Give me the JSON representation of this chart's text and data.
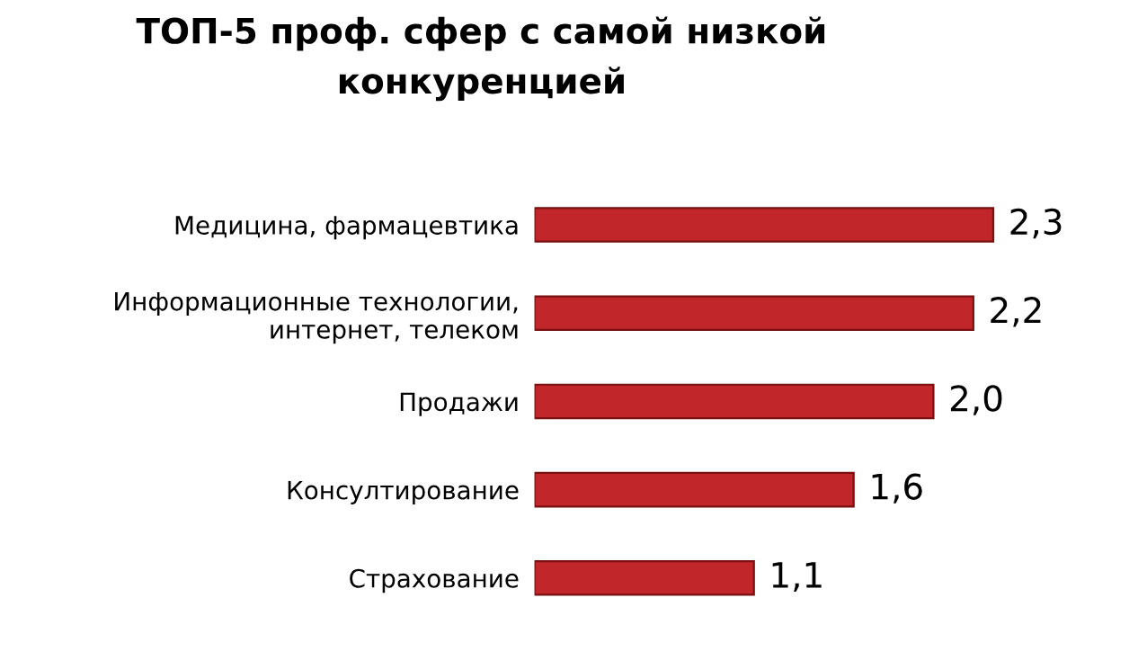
{
  "chart_data": {
    "type": "bar",
    "orientation": "horizontal",
    "title": "ТОП-5 проф. сфер с самой низкой\nконкуренцией",
    "categories": [
      "Медицина, фармацевтика",
      "Информационные технологии,\nинтернет, телеком",
      "Продажи",
      "Консултирование",
      "Страхование"
    ],
    "values": [
      2.3,
      2.2,
      2.0,
      1.6,
      1.1
    ],
    "value_labels": [
      "2,3",
      "2,2",
      "2,0",
      "1,6",
      "1,1"
    ],
    "color": "#c0262a",
    "grid": false,
    "legend": false,
    "tick_labels": "y"
  }
}
